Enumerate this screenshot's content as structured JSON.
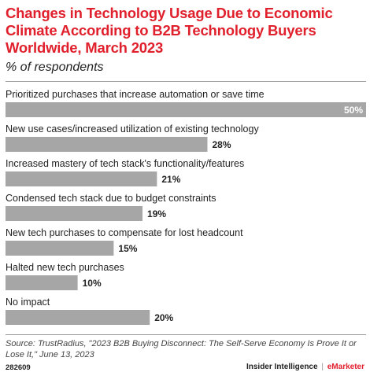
{
  "header": {
    "title": "Changes in Technology Usage Due to Economic Climate According to B2B Technology Buyers Worldwide, March 2023",
    "subtitle": "% of respondents"
  },
  "chart_data": {
    "type": "bar",
    "orientation": "horizontal",
    "categories": [
      "Prioritized purchases that increase automation or save time",
      "New use cases/increased utilization of existing technology",
      "Increased mastery of tech stack's functionality/features",
      "Condensed tech stack due to budget constraints",
      "New tech purchases to compensate for lost headcount",
      "Halted new tech purchases",
      "No impact"
    ],
    "values": [
      50,
      28,
      21,
      19,
      15,
      10,
      20
    ],
    "value_labels": [
      "50%",
      "28%",
      "21%",
      "19%",
      "15%",
      "10%",
      "20%"
    ],
    "xlim": [
      0,
      50
    ],
    "bar_color": "#a6a6a6",
    "grid": false
  },
  "footer": {
    "source": "Source: TrustRadius, \"2023 B2B Buying Disconnect: The Self-Serve Economy Is Prove It or Lose It,\" June 13, 2023",
    "chart_id": "282609",
    "brand_left": "Insider Intelligence",
    "brand_sep": "|",
    "brand_right": "eMarketer"
  },
  "colors": {
    "title": "#e0202c",
    "bar": "#a6a6a6",
    "label_inside": "#ffffff",
    "label_outside": "#222222"
  }
}
